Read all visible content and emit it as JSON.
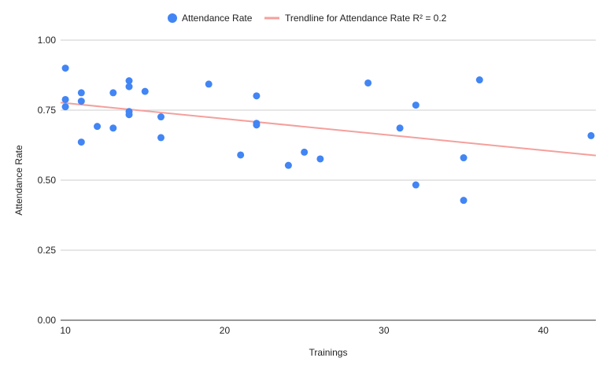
{
  "chart_data": {
    "type": "scatter",
    "xlabel": "Trainings",
    "ylabel": "Attendance Rate",
    "xlim": [
      9.7,
      43.3
    ],
    "ylim": [
      0,
      1
    ],
    "x_ticks": [
      10,
      20,
      30,
      40
    ],
    "x_tick_labels": [
      "10",
      "20",
      "30",
      "40"
    ],
    "y_ticks": [
      0,
      0.25,
      0.5,
      0.75,
      1
    ],
    "y_tick_labels": [
      "0.00",
      "0.25",
      "0.50",
      "0.75",
      "1.00"
    ],
    "grid": "horizontal",
    "legend_position": "top",
    "series": [
      {
        "name": "Attendance Rate",
        "color": "#4285F4",
        "marker": "circle",
        "points": [
          {
            "x": 10,
            "y": 0.9
          },
          {
            "x": 10,
            "y": 0.788
          },
          {
            "x": 10,
            "y": 0.762
          },
          {
            "x": 11,
            "y": 0.812
          },
          {
            "x": 11,
            "y": 0.782
          },
          {
            "x": 11,
            "y": 0.636
          },
          {
            "x": 12,
            "y": 0.692
          },
          {
            "x": 13,
            "y": 0.812
          },
          {
            "x": 13,
            "y": 0.686
          },
          {
            "x": 14,
            "y": 0.855
          },
          {
            "x": 14,
            "y": 0.834
          },
          {
            "x": 14,
            "y": 0.745
          },
          {
            "x": 14,
            "y": 0.734
          },
          {
            "x": 15,
            "y": 0.817
          },
          {
            "x": 16,
            "y": 0.726
          },
          {
            "x": 16,
            "y": 0.652
          },
          {
            "x": 19,
            "y": 0.843
          },
          {
            "x": 21,
            "y": 0.59
          },
          {
            "x": 22,
            "y": 0.801
          },
          {
            "x": 22,
            "y": 0.703
          },
          {
            "x": 22,
            "y": 0.697
          },
          {
            "x": 24,
            "y": 0.553
          },
          {
            "x": 25,
            "y": 0.6
          },
          {
            "x": 26,
            "y": 0.576
          },
          {
            "x": 29,
            "y": 0.847
          },
          {
            "x": 31,
            "y": 0.686
          },
          {
            "x": 32,
            "y": 0.768
          },
          {
            "x": 32,
            "y": 0.483
          },
          {
            "x": 35,
            "y": 0.58
          },
          {
            "x": 35,
            "y": 0.428
          },
          {
            "x": 36,
            "y": 0.858
          },
          {
            "x": 43,
            "y": 0.659
          }
        ]
      }
    ],
    "trendline": {
      "name": "Trendline for Attendance Rate R² = 0.2",
      "color": "#F4A09C",
      "type": "linear",
      "start": {
        "x": 9.7,
        "y": 0.777
      },
      "end": {
        "x": 43.3,
        "y": 0.588
      }
    }
  }
}
